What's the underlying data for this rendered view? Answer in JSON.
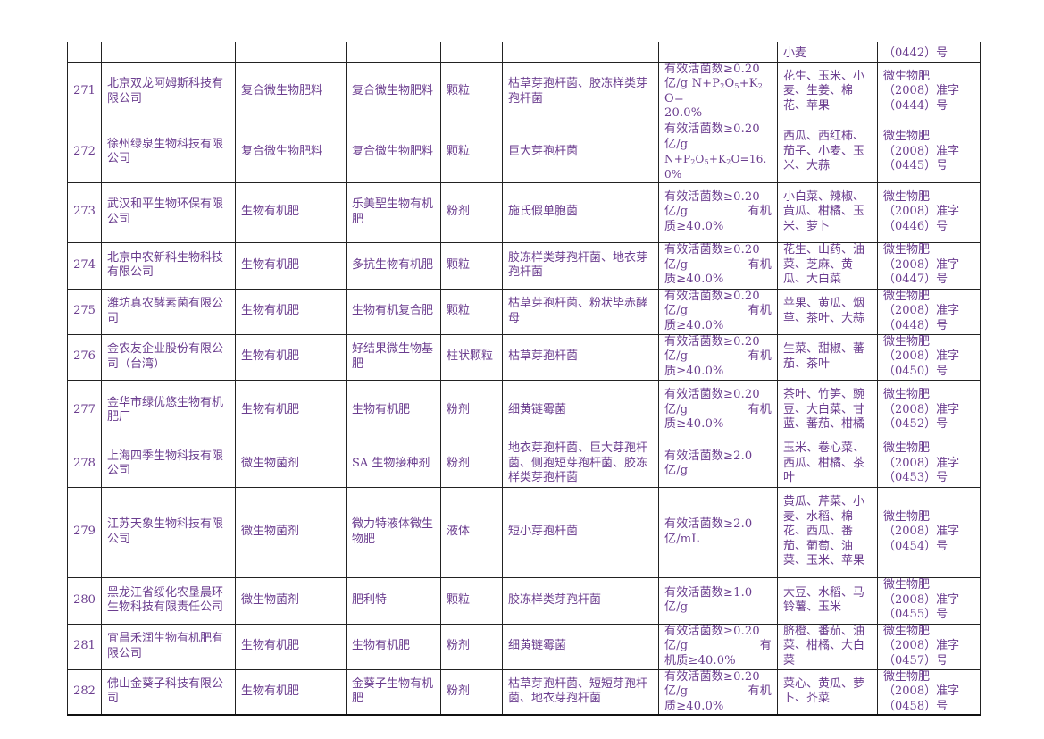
{
  "partial_row": {
    "crops": "小麦",
    "cert": "（0442）号"
  },
  "rows": [
    {
      "no": "271",
      "company": "北京双龙阿姆斯科技有限公司",
      "type": "复合微生物肥料",
      "product": "复合微生物肥料",
      "form": "颗粒",
      "strain": "枯草芽孢杆菌、胶冻样类芽孢杆菌",
      "spec1": "有效活菌数≥0.20",
      "spec2a": "亿/g N+P",
      "spec2b": "O",
      "spec2c": "+K",
      "spec2d": "O=",
      "spec3": "20.0%",
      "crops": "花生、玉米、小麦、生姜、棉花、苹果",
      "cert1": "微生物肥",
      "cert2": "（2008）准字",
      "cert3": "（0444）号"
    },
    {
      "no": "272",
      "company": "徐州绿泉生物科技有限公司",
      "type": "复合微生物肥料",
      "product": "复合微生物肥料",
      "form": "颗粒",
      "strain": "巨大芽孢杆菌",
      "spec1": "有效活菌数≥0.20",
      "spec2": "亿/g",
      "spec3a": "N+P",
      "spec3b": "O",
      "spec3c": "+K",
      "spec3d": "O=16.0%",
      "crops": "西瓜、西红柿、茄子、小麦、玉米、大蒜",
      "cert1": "微生物肥",
      "cert2": "（2008）准字",
      "cert3": "（0445）号"
    },
    {
      "no": "273",
      "company": "武汉和平生物环保有限公司",
      "type": "生物有机肥",
      "product": "乐美聖生物有机肥",
      "form": "粉剂",
      "strain": "施氏假单胞菌",
      "spec1": "有效活菌数≥0.20",
      "spec2l": "亿/g",
      "spec2r": "有机",
      "spec3": "质≥40.0%",
      "crops": "小白菜、辣椒、黄瓜、柑橘、玉米、萝卜",
      "cert1": "微生物肥",
      "cert2": "（2008）准字",
      "cert3": "（0446）号"
    },
    {
      "no": "274",
      "company": "北京中农新科生物科技有限公司",
      "type": "生物有机肥",
      "product": "多抗生物有机肥",
      "form": "颗粒",
      "strain": "胶冻样类芽孢杆菌、地衣芽孢杆菌",
      "spec1": "有效活菌数≥0.20",
      "spec2l": "亿/g",
      "spec2r": "有机",
      "spec3": "质≥40.0%",
      "crops": "花生、山药、油菜、芝麻、黄瓜、大白菜",
      "cert1": "微生物肥",
      "cert2": "（2008）准字",
      "cert3": "（0447）号"
    },
    {
      "no": "275",
      "company": "潍坊真农酵素菌有限公司",
      "type": "生物有机肥",
      "product": "生物有机复合肥",
      "form": "颗粒",
      "strain": "枯草芽孢杆菌、粉状毕赤酵母",
      "spec1": "有效活菌数≥0.20",
      "spec2l": "亿/g",
      "spec2r": "有机",
      "spec3": "质≥40.0%",
      "crops": "苹果、黄瓜、烟草、茶叶、大蒜",
      "cert1": "微生物肥",
      "cert2": "（2008）准字",
      "cert3": "（0448）号"
    },
    {
      "no": "276",
      "company": "金农友企业股份有限公司（台湾）",
      "type": "生物有机肥",
      "product": "好结果微生物基肥",
      "form": "柱状颗粒",
      "strain": "枯草芽孢杆菌",
      "spec1": "有效活菌数≥0.20",
      "spec2l": "亿/g",
      "spec2r": "有机",
      "spec3": "质≥40.0%",
      "crops": "生菜、甜椒、蕃茄、茶叶",
      "cert1": "微生物肥",
      "cert2": "（2008）准字",
      "cert3": "（0450）号"
    },
    {
      "no": "277",
      "company": "金华市绿优悠生物有机肥厂",
      "type": "生物有机肥",
      "product": "生物有机肥",
      "form": "粉剂",
      "strain": "细黄链霉菌",
      "spec1": "有效活菌数≥0.20",
      "spec2l": "亿/g",
      "spec2r": "有机",
      "spec3": "质≥40.0%",
      "crops": "茶叶、竹笋、豌豆、大白菜、甘蓝、蕃茄、柑橘",
      "cert1": "微生物肥",
      "cert2": "（2008）准字",
      "cert3": "（0452）号"
    },
    {
      "no": "278",
      "company": "上海四季生物科技有限公司",
      "type": "微生物菌剂",
      "product": "SA 生物接种剂",
      "form": "粉剂",
      "strain": "地衣芽孢杆菌、巨大芽孢杆菌、侧孢短芽孢杆菌、胶冻样类芽孢杆菌",
      "spec1": "有效活菌数≥2.0",
      "spec2": "亿/g",
      "crops": "玉米、卷心菜、西瓜、柑橘、茶叶",
      "cert1": "微生物肥",
      "cert2": "（2008）准字",
      "cert3": "（0453）号"
    },
    {
      "no": "279",
      "company": "江苏天象生物科技有限公司",
      "type": "微生物菌剂",
      "product": "微力特液体微生物肥",
      "form": "液体",
      "strain": "短小芽孢杆菌",
      "spec1": "有效活菌数≥2.0",
      "spec2": "亿/mL",
      "crops": "黄瓜、芹菜、小麦、水稻、棉花、西瓜、番茄、葡萄、油菜、玉米、苹果",
      "cert1": "微生物肥",
      "cert2": "（2008）准字",
      "cert3": "（0454）号"
    },
    {
      "no": "280",
      "company": "黑龙江省绥化农垦晨环生物科技有限责任公司",
      "type": "微生物菌剂",
      "product": "肥利特",
      "form": "颗粒",
      "strain": "胶冻样类芽孢杆菌",
      "spec1": "有效活菌数≥1.0",
      "spec2": "亿/g",
      "crops": "大豆、水稻、马铃薯、玉米",
      "cert1": "微生物肥",
      "cert2": "（2008）准字",
      "cert3": "（0455）号"
    },
    {
      "no": "281",
      "company": "宜昌禾润生物有机肥有限公司",
      "type": "生物有机肥",
      "product": "生物有机肥",
      "form": "粉剂",
      "strain": "细黄链霉菌",
      "spec1": "有效活菌数≥0.20",
      "spec2l": "亿/g",
      "spec2r": "有",
      "spec3": "机质≥40.0%",
      "crops": "脐橙、番茄、油菜、柑橘、大白菜",
      "cert1": "微生物肥",
      "cert2": "（2008）准字",
      "cert3": "（0457）号"
    },
    {
      "no": "282",
      "company": "佛山金葵子科技有限公司",
      "type": "生物有机肥",
      "product": "金葵子生物有机肥",
      "form": "粉剂",
      "strain": "枯草芽孢杆菌、短短芽孢杆菌、地衣芽孢杆菌",
      "spec1": "有效活菌数≥0.20",
      "spec2l": "亿/g",
      "spec2r": "有机",
      "spec3": "质≥40.0%",
      "crops": "菜心、黄瓜、萝卜、芥菜",
      "cert1": "微生物肥",
      "cert2": "（2008）准字",
      "cert3": "（0458）号"
    }
  ]
}
